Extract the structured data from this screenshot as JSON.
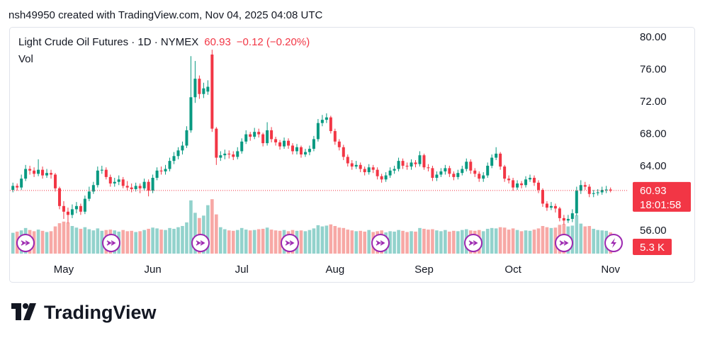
{
  "chart_data": {
    "type": "candlestick",
    "attribution": "nsh49950 created with TradingView.com, Nov 04, 2025 04:08 UTC",
    "title": "Light Crude Oil Futures · 1D · NYMEX",
    "change": "−0.12 (−0.20%)",
    "volume_title": "Vol",
    "countdown": "18:01:58",
    "volume_label": "5.3 K",
    "brand": "TradingView",
    "up_color": "#089981",
    "down_color": "#f23645",
    "volume_up_color": "#92d2cc",
    "volume_down_color": "#f7a8a5",
    "grid": false,
    "xlim": [
      -0.7,
      144.9
    ],
    "xticks": [
      {
        "value": 12,
        "label": "May"
      },
      {
        "value": 33,
        "label": "Jun"
      },
      {
        "value": 54,
        "label": "Jul"
      },
      {
        "value": 76,
        "label": "Aug"
      },
      {
        "value": 97,
        "label": "Sep"
      },
      {
        "value": 118,
        "label": "Oct"
      },
      {
        "value": 141,
        "label": "Nov"
      }
    ],
    "ylim": [
      52.92,
      81.05
    ],
    "yticks": [
      {
        "value": 56,
        "label": "56.00"
      },
      {
        "value": 64,
        "label": "64.00"
      },
      {
        "value": 68,
        "label": "68.00"
      },
      {
        "value": 72,
        "label": "72.00"
      },
      {
        "value": 76,
        "label": "76.00"
      },
      {
        "value": 80,
        "label": "80.00"
      }
    ],
    "y2lim": [
      0,
      17.7
    ],
    "open": [
      61.0,
      61.5,
      61.3,
      62.4,
      63.6,
      63.4,
      63.0,
      63.5,
      62.8,
      63.1,
      62.9,
      61.2,
      59.0,
      58.3,
      57.9,
      58.6,
      59.0,
      58.3,
      59.9,
      60.8,
      61.6,
      63.4,
      63.5,
      62.6,
      61.8,
      62.0,
      62.3,
      61.5,
      61.3,
      61.1,
      61.5,
      61.2,
      62.0,
      60.9,
      62.5,
      63.4,
      63.3,
      63.6,
      64.6,
      65.2,
      65.9,
      66.5,
      68.4,
      72.5,
      74.8,
      72.9,
      73.2,
      77.8,
      68.6,
      65.0,
      65.3,
      65.5,
      65.4,
      65.1,
      65.8,
      67.0,
      67.9,
      67.6,
      68.2,
      67.9,
      66.8,
      68.4,
      67.3,
      66.9,
      66.4,
      67.1,
      66.5,
      65.8,
      66.3,
      65.4,
      65.7,
      66.1,
      67.3,
      69.3,
      69.7,
      70.0,
      68.3,
      67.0,
      66.3,
      65.1,
      64.3,
      63.9,
      64.1,
      63.6,
      63.2,
      63.8,
      63.5,
      62.7,
      62.3,
      62.8,
      63.4,
      63.6,
      64.6,
      64.0,
      63.9,
      64.4,
      64.2,
      65.3,
      63.8,
      63.7,
      62.5,
      62.9,
      63.3,
      63.7,
      63.0,
      62.6,
      63.1,
      63.6,
      64.5,
      63.4,
      63.0,
      62.4,
      62.8,
      64.0,
      65.0,
      65.5,
      63.9,
      62.4,
      62.2,
      61.3,
      61.8,
      61.6,
      62.3,
      62.5,
      61.9,
      61.0,
      59.3,
      58.8,
      59.0,
      58.7,
      57.5,
      57.2,
      57.4,
      58.1,
      60.9,
      61.6,
      61.4,
      60.5,
      60.6,
      60.7,
      61.0,
      61.05
    ],
    "high": [
      61.9,
      61.8,
      62.9,
      64.1,
      64.0,
      63.8,
      64.8,
      63.9,
      63.6,
      63.5,
      63.1,
      61.4,
      59.6,
      58.8,
      59.2,
      59.5,
      59.3,
      60.3,
      61.4,
      62.0,
      63.9,
      64.0,
      63.8,
      62.9,
      62.5,
      62.8,
      62.6,
      62.1,
      61.8,
      61.9,
      61.8,
      62.4,
      62.3,
      62.9,
      63.8,
      63.9,
      64.1,
      65.0,
      65.7,
      66.3,
      67.0,
      68.9,
      77.6,
      77.0,
      75.2,
      74.3,
      74.6,
      78.4,
      68.8,
      65.8,
      66.0,
      65.9,
      65.8,
      66.3,
      67.4,
      68.4,
      68.2,
      68.7,
      68.6,
      68.1,
      69.4,
      68.8,
      67.6,
      67.2,
      67.5,
      67.4,
      66.8,
      66.7,
      66.5,
      66.1,
      66.5,
      67.7,
      69.8,
      70.3,
      70.5,
      70.2,
      68.6,
      67.3,
      66.6,
      65.4,
      64.7,
      64.6,
      64.4,
      63.9,
      64.2,
      64.1,
      63.8,
      63.0,
      63.2,
      63.8,
      64.0,
      65.0,
      64.9,
      64.4,
      64.8,
      64.7,
      65.8,
      65.5,
      64.2,
      64.0,
      63.3,
      63.7,
      64.1,
      64.0,
      63.3,
      63.5,
      64.0,
      64.9,
      64.8,
      63.7,
      63.3,
      63.2,
      64.4,
      65.4,
      66.3,
      65.7,
      64.1,
      62.8,
      62.5,
      62.2,
      62.1,
      62.7,
      62.9,
      62.8,
      62.2,
      61.2,
      59.6,
      59.5,
      59.3,
      58.9,
      57.9,
      57.9,
      58.6,
      61.4,
      62.2,
      62.0,
      61.7,
      61.0,
      61.1,
      61.4,
      61.5,
      61.3
    ],
    "low": [
      60.7,
      60.9,
      61.0,
      62.1,
      62.9,
      62.6,
      62.7,
      62.4,
      62.5,
      62.4,
      60.8,
      58.6,
      57.4,
      56.9,
      57.5,
      58.1,
      57.9,
      58.0,
      59.6,
      60.5,
      61.3,
      63.0,
      62.3,
      61.4,
      61.4,
      61.6,
      61.2,
      60.9,
      60.7,
      60.8,
      60.6,
      60.9,
      60.2,
      60.6,
      62.2,
      62.9,
      62.9,
      63.3,
      64.2,
      64.8,
      65.4,
      66.2,
      68.1,
      71.8,
      72.3,
      72.4,
      72.8,
      68.2,
      64.1,
      64.6,
      64.8,
      64.9,
      64.7,
      64.8,
      65.5,
      66.7,
      67.1,
      67.3,
      67.5,
      66.4,
      66.5,
      66.9,
      66.5,
      66.0,
      66.1,
      66.1,
      65.4,
      65.4,
      65.0,
      65.1,
      65.3,
      65.8,
      67.0,
      68.9,
      69.3,
      68.0,
      66.6,
      65.9,
      64.7,
      63.9,
      63.5,
      63.6,
      63.2,
      62.8,
      62.9,
      63.1,
      62.3,
      61.9,
      62.0,
      62.5,
      63.0,
      63.3,
      63.6,
      63.5,
      63.5,
      63.8,
      63.9,
      63.5,
      63.3,
      62.1,
      62.1,
      62.6,
      62.9,
      62.6,
      62.2,
      62.3,
      62.8,
      63.3,
      63.0,
      62.6,
      62.0,
      62.0,
      62.5,
      63.7,
      64.7,
      63.5,
      62.0,
      61.8,
      60.9,
      61.0,
      61.2,
      61.3,
      62.0,
      61.5,
      60.6,
      58.9,
      58.4,
      58.5,
      58.2,
      57.1,
      56.7,
      56.9,
      57.0,
      57.8,
      60.5,
      61.0,
      60.1,
      60.1,
      60.3,
      60.4,
      60.6,
      60.7
    ],
    "close": [
      61.5,
      61.3,
      62.4,
      63.6,
      63.4,
      63.0,
      63.5,
      62.8,
      63.1,
      62.9,
      61.2,
      59.0,
      58.3,
      57.9,
      58.6,
      59.0,
      58.3,
      59.9,
      60.8,
      61.6,
      63.4,
      63.5,
      62.6,
      61.8,
      62.0,
      62.3,
      61.5,
      61.3,
      61.1,
      61.5,
      61.2,
      62.0,
      60.9,
      62.5,
      63.4,
      63.3,
      63.6,
      64.6,
      65.2,
      65.9,
      66.5,
      68.4,
      72.5,
      74.8,
      72.9,
      73.6,
      73.8,
      68.6,
      65.0,
      65.3,
      65.5,
      65.4,
      65.1,
      65.8,
      67.0,
      67.9,
      67.6,
      68.2,
      67.9,
      66.8,
      68.4,
      67.3,
      66.9,
      66.4,
      67.1,
      66.5,
      65.8,
      66.3,
      65.4,
      65.7,
      66.1,
      67.3,
      69.3,
      69.7,
      70.0,
      68.3,
      67.0,
      66.3,
      65.1,
      64.3,
      63.9,
      64.1,
      63.6,
      63.2,
      63.8,
      63.5,
      62.7,
      62.3,
      62.8,
      63.4,
      63.6,
      64.6,
      64.0,
      63.9,
      64.4,
      64.2,
      65.3,
      63.8,
      63.7,
      62.5,
      62.9,
      63.3,
      63.7,
      63.0,
      62.6,
      63.1,
      63.6,
      64.5,
      63.4,
      63.0,
      62.4,
      62.8,
      64.0,
      65.0,
      65.5,
      63.9,
      62.4,
      62.2,
      61.3,
      61.8,
      61.6,
      62.3,
      62.5,
      61.9,
      61.0,
      59.3,
      58.8,
      59.0,
      58.7,
      57.5,
      57.2,
      57.4,
      58.1,
      60.9,
      61.6,
      61.4,
      60.5,
      60.6,
      60.7,
      61.0,
      61.05,
      60.93
    ],
    "volume": [
      5.2,
      5.5,
      5.8,
      6.4,
      5.9,
      5.6,
      6.0,
      5.7,
      5.4,
      5.6,
      6.8,
      7.6,
      8.0,
      7.8,
      6.9,
      6.5,
      6.2,
      6.6,
      6.1,
      5.8,
      6.3,
      5.7,
      5.9,
      6.0,
      5.8,
      5.5,
      5.9,
      5.6,
      5.7,
      5.4,
      5.6,
      5.9,
      6.2,
      6.5,
      6.3,
      6.0,
      5.9,
      6.4,
      6.2,
      6.6,
      6.9,
      7.8,
      13.3,
      10.2,
      8.9,
      9.5,
      12.1,
      13.6,
      9.8,
      6.6,
      6.1,
      5.8,
      5.7,
      5.9,
      6.4,
      6.0,
      5.8,
      5.9,
      6.1,
      6.2,
      6.5,
      6.0,
      5.8,
      5.7,
      5.9,
      5.6,
      5.9,
      5.7,
      5.8,
      5.6,
      5.9,
      6.3,
      7.1,
      6.8,
      7.0,
      7.3,
      6.9,
      6.5,
      6.4,
      6.0,
      5.8,
      5.6,
      5.7,
      5.5,
      5.9,
      5.4,
      5.6,
      5.8,
      5.3,
      5.6,
      5.5,
      5.9,
      5.7,
      5.4,
      5.6,
      5.5,
      6.4,
      6.2,
      6.0,
      6.1,
      5.8,
      5.6,
      5.9,
      5.5,
      5.7,
      5.6,
      5.9,
      6.1,
      5.8,
      5.7,
      5.9,
      5.6,
      6.2,
      6.4,
      6.3,
      6.6,
      6.5,
      6.0,
      6.3,
      5.9,
      5.6,
      5.8,
      5.7,
      6.0,
      6.3,
      6.9,
      6.6,
      6.4,
      6.5,
      7.2,
      7.4,
      6.8,
      7.0,
      9.6,
      7.5,
      6.8,
      6.9,
      6.2,
      5.9,
      5.8,
      5.7,
      5.3
    ]
  }
}
